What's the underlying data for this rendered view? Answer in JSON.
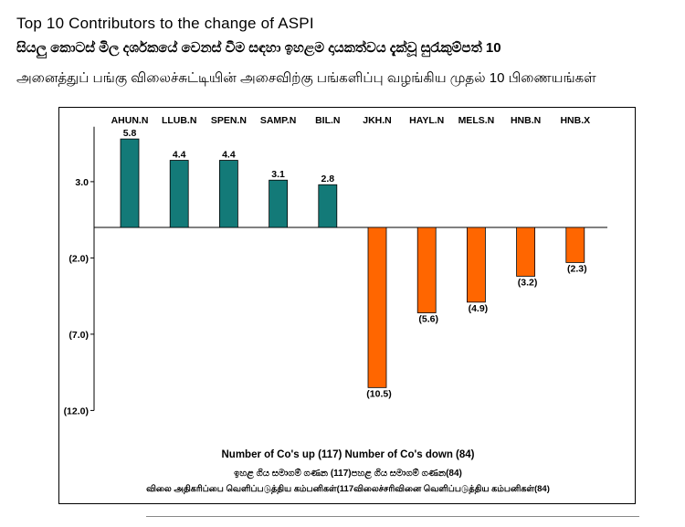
{
  "titles": {
    "english": "Top 10 Contributors to the change of ASPI",
    "sinhala": "සියලු කොටස් මිල දර්ශකයේ වෙනස් වීම සඳහා ඉහළම දායකත්වය දැක්වූ සුරැකුම්පත් 10",
    "tamil": "அனைத்துப் பங்கு விலைச்சுட்டியின் அசைவிற்கு பங்களிப்பு வழங்கிய முதல் 10 பிணையங்கள்"
  },
  "footer": {
    "english": "Number of Co's up (117) Number of Co's down  (84)",
    "sinhala": "ඉහළ ගිය සමාගම් ගණන (117)පහළ ගිය සමාගම් ගණන(84)",
    "tamil": "விலை அதிகரிப்பை வெளிப்படுத்திய கம்பனிகள்(117விலைச்சரிவினை வெளிப்படுத்திய கம்பனிகள்(84)"
  },
  "colors": {
    "positive": "#137a78",
    "negative": "#ff6600",
    "axis": "#000000"
  },
  "chart_data": {
    "type": "bar",
    "title": "Top 10 Contributors to the change of ASPI",
    "categories": [
      "AHUN.N",
      "LLUB.N",
      "SPEN.N",
      "SAMP.N",
      "BIL.N",
      "JKH.N",
      "HAYL.N",
      "MELS.N",
      "HNB.N",
      "HNB.X"
    ],
    "values": [
      5.8,
      4.4,
      4.4,
      3.1,
      2.8,
      -10.5,
      -5.6,
      -4.9,
      -3.2,
      -2.3
    ],
    "value_labels": [
      "5.8",
      "4.4",
      "4.4",
      "3.1",
      "2.8",
      "(10.5)",
      "(5.6)",
      "(4.9)",
      "(3.2)",
      "(2.3)"
    ],
    "ylim": [
      -12,
      6
    ],
    "yticks": [
      3,
      -2,
      -7,
      -12
    ],
    "ytick_labels": [
      "3.0",
      "(2.0)",
      "(7.0)",
      "(12.0)"
    ],
    "xlabel": "",
    "ylabel": "",
    "grid": false,
    "legend": "none"
  }
}
